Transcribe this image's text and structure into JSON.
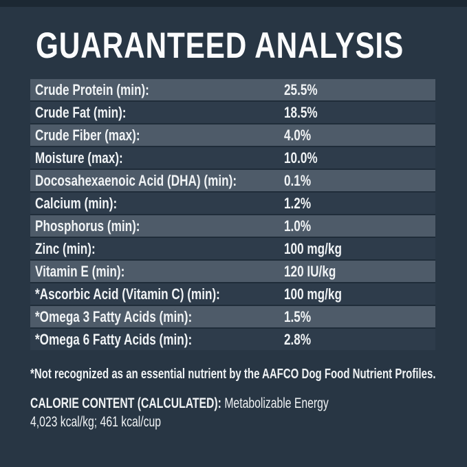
{
  "page": {
    "title": "GUARANTEED ANALYSIS",
    "colors": {
      "background": "#283644",
      "top_band": "#1c2833",
      "row_light": "#4e5b69",
      "row_dark": "#2e3c4b",
      "row_divider": "#1f2c39",
      "text": "#f0f3f5"
    }
  },
  "table": {
    "rows": [
      {
        "label": "Crude Protein (min):",
        "value": "25.5%"
      },
      {
        "label": "Crude Fat (min):",
        "value": "18.5%"
      },
      {
        "label": "Crude Fiber (max):",
        "value": "4.0%"
      },
      {
        "label": "Moisture (max):",
        "value": "10.0%"
      },
      {
        "label": "Docosahexaenoic Acid (DHA) (min):",
        "value": "0.1%"
      },
      {
        "label": "Calcium (min):",
        "value": "1.2%"
      },
      {
        "label": "Phosphorus (min):",
        "value": "1.0%"
      },
      {
        "label": "Zinc (min):",
        "value": "100 mg/kg"
      },
      {
        "label": "Vitamin E (min):",
        "value": "120 IU/kg"
      },
      {
        "label": "*Ascorbic Acid (Vitamin C) (min):",
        "value": "100 mg/kg"
      },
      {
        "label": "*Omega 3 Fatty Acids (min):",
        "value": "1.5%"
      },
      {
        "label": "*Omega 6 Fatty Acids (min):",
        "value": "2.8%"
      }
    ]
  },
  "footnote": "*Not recognized as an essential nutrient by the AAFCO Dog Food Nutrient Profiles.",
  "calorie": {
    "heading": "CALORIE CONTENT (CALCULATED):",
    "subheading": "Metabolizable Energy",
    "values": "4,023 kcal/kg; 461 kcal/cup"
  }
}
